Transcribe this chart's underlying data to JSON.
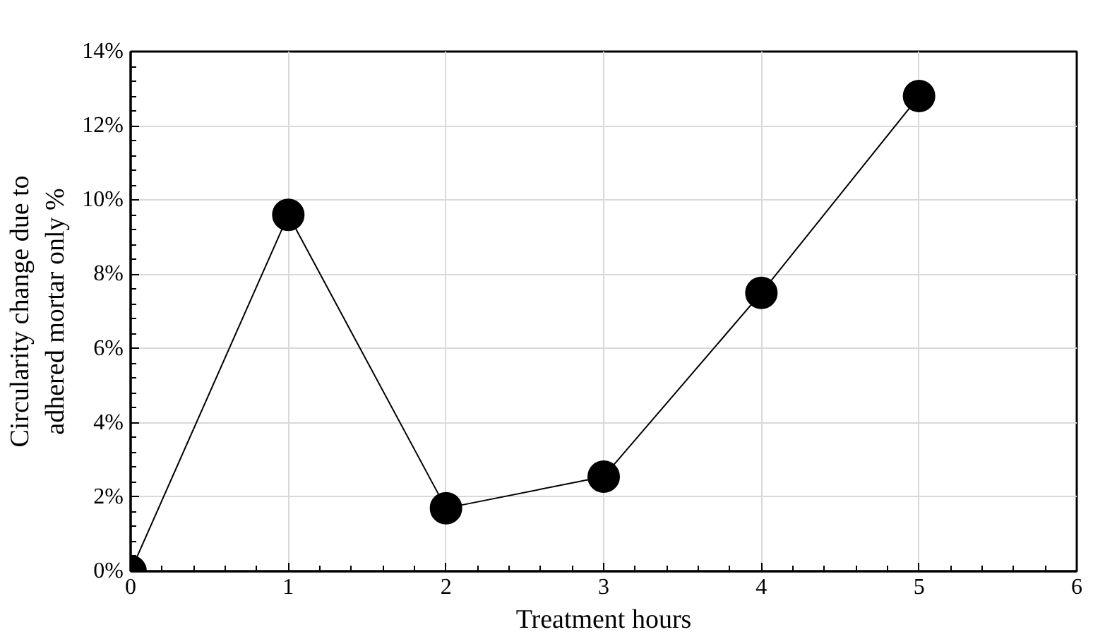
{
  "chart_data": {
    "type": "line",
    "xlabel": "Treatment hours",
    "ylabel": "Circularity change due to\nadhered mortar only %",
    "x": [
      0,
      1,
      2,
      3,
      4,
      5
    ],
    "series": [
      {
        "color": "#000000",
        "values": [
          0,
          9.6,
          1.7,
          2.55,
          7.5,
          12.8
        ]
      }
    ],
    "xlim": [
      0,
      6
    ],
    "xticks": [
      0,
      1,
      2,
      3,
      4,
      5,
      6
    ],
    "ylim": [
      0,
      14
    ],
    "yticks": [
      {
        "value": 0,
        "label": "0%"
      },
      {
        "value": 2,
        "label": "2%"
      },
      {
        "value": 4,
        "label": "4%"
      },
      {
        "value": 6,
        "label": "6%"
      },
      {
        "value": 8,
        "label": "8%"
      },
      {
        "value": 10,
        "label": "10%"
      },
      {
        "value": 12,
        "label": "12%"
      },
      {
        "value": 14,
        "label": "14%"
      }
    ],
    "grid": true,
    "marker": "circle",
    "line_style": "solid"
  }
}
